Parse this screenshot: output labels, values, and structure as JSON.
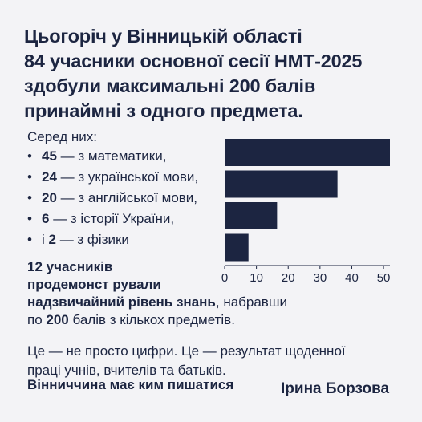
{
  "headline": [
    "Цьогоріч у Вінницькій області",
    "84 учасники основної сесії НМТ-2025",
    "здобули максимальні 200 балів",
    "принаймні з одного предмета."
  ],
  "intro": "Серед них:",
  "list": [
    {
      "bullet": "•",
      "prefix": "",
      "count": "45",
      "text": " — з математики,"
    },
    {
      "bullet": "•",
      "prefix": "",
      "count": "24",
      "text": " — з української мови,"
    },
    {
      "bullet": "•",
      "prefix": "",
      "count": "20",
      "text": " — з англійської мови,"
    },
    {
      "bullet": "•",
      "prefix": "",
      "count": "6",
      "text": " — з історії України,"
    },
    {
      "bullet": "•",
      "prefix": "і ",
      "count": "2",
      "text": " — з фізики"
    }
  ],
  "paragraph": {
    "line1": "12 учасників",
    "line2": "продемонст рували",
    "line3_bold": "надзвичайний рівень знань",
    "line3_rest": ", набравши",
    "line4_a": "по ",
    "line4_bold": "200",
    "line4_b": " балів з кількох предметів."
  },
  "closing": [
    "Це — не просто цифри. Це — результат щоденної",
    "праці учнів, вчителів та батьків."
  ],
  "slogan": "Вінниччина має ким пишатися",
  "author": "Ірина Борзова",
  "colors": {
    "bar": "#1c2541",
    "text": "#1c2541",
    "background": "#f3f3f6"
  },
  "chart_data": {
    "type": "bar",
    "orientation": "horizontal",
    "values": [
      52,
      35.5,
      16.5,
      7.5
    ],
    "xlim": [
      0,
      52
    ],
    "xticks": [
      0,
      10,
      20,
      30,
      40,
      50
    ],
    "title": "",
    "xlabel": "",
    "ylabel": "",
    "grid": false
  }
}
